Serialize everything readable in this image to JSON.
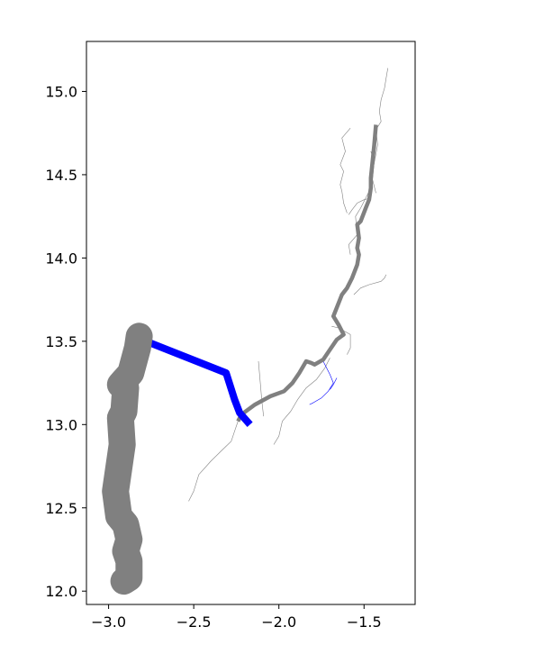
{
  "chart_data": {
    "type": "line",
    "title": "",
    "xlabel": "",
    "ylabel": "",
    "xlim": [
      -3.13,
      -1.2
    ],
    "ylim": [
      11.92,
      15.3
    ],
    "xticks": [
      -3.0,
      -2.5,
      -2.0,
      -1.5
    ],
    "yticks": [
      12.0,
      12.5,
      13.0,
      13.5,
      14.0,
      14.5,
      15.0
    ],
    "xtick_labels": [
      "−3.0",
      "−2.5",
      "−2.0",
      "−1.5"
    ],
    "ytick_labels": [
      "12.0",
      "12.5",
      "13.0",
      "13.5",
      "14.0",
      "14.5",
      "15.0"
    ],
    "grid": false,
    "colors": {
      "gray": "#808080",
      "blue": "#0000ff",
      "frame": "#000000"
    },
    "series": [
      {
        "color": "#808080",
        "width": 0.6,
        "x": [
          -1.36,
          -1.37,
          -1.38,
          -1.4,
          -1.41,
          -1.4,
          -1.43,
          -1.42,
          -1.44,
          -1.46,
          -1.47,
          -1.5,
          -1.52,
          -1.55,
          -1.54,
          -1.59,
          -1.58
        ],
        "y": [
          15.14,
          15.08,
          15.02,
          14.95,
          14.88,
          14.82,
          14.77,
          14.68,
          14.57,
          14.47,
          14.4,
          14.34,
          14.3,
          14.25,
          14.14,
          14.08,
          14.02
        ]
      },
      {
        "color": "#808080",
        "width": 0.6,
        "x": [
          -1.6,
          -1.62,
          -1.63,
          -1.64,
          -1.62,
          -1.64,
          -1.61,
          -1.63,
          -1.58
        ],
        "y": [
          14.27,
          14.33,
          14.4,
          14.44,
          14.52,
          14.56,
          14.64,
          14.72,
          14.78
        ]
      },
      {
        "color": "#808080",
        "width": 0.6,
        "x": [
          -1.46,
          -1.5,
          -1.54,
          -1.57,
          -1.59
        ],
        "y": [
          14.36,
          14.35,
          14.33,
          14.29,
          14.26
        ]
      },
      {
        "color": "#808080",
        "width": 0.6,
        "x": [
          -1.43,
          -1.45,
          -1.44,
          -1.46
        ],
        "y": [
          14.39,
          14.47,
          14.58,
          14.64
        ]
      },
      {
        "color": "#808080",
        "width": 0.6,
        "x": [
          -1.37,
          -1.38,
          -1.4,
          -1.47,
          -1.52,
          -1.56
        ],
        "y": [
          13.9,
          13.88,
          13.86,
          13.84,
          13.82,
          13.78
        ]
      },
      {
        "color": "#808080",
        "width": 0.6,
        "x": [
          -1.69,
          -1.65,
          -1.58,
          -1.58,
          -1.6
        ],
        "y": [
          13.59,
          13.58,
          13.54,
          13.46,
          13.42
        ]
      },
      {
        "color": "#808080",
        "width": 0.6,
        "x": [
          -1.7,
          -1.73,
          -1.78,
          -1.84,
          -1.89,
          -1.93,
          -1.98,
          -2.0,
          -2.03
        ],
        "y": [
          13.4,
          13.34,
          13.27,
          13.22,
          13.15,
          13.08,
          13.02,
          12.93,
          12.88
        ]
      },
      {
        "color": "#808080",
        "width": 0.6,
        "x": [
          -2.24,
          -2.26,
          -2.28,
          -2.34,
          -2.4,
          -2.47,
          -2.5,
          -2.53
        ],
        "y": [
          13.02,
          12.96,
          12.9,
          12.84,
          12.78,
          12.7,
          12.6,
          12.54
        ]
      },
      {
        "color": "#808080",
        "width": 0.6,
        "x": [
          -2.09,
          -2.1,
          -2.11,
          -2.12
        ],
        "y": [
          13.05,
          13.14,
          13.26,
          13.38
        ]
      },
      {
        "color": "#0000ff",
        "width": 0.6,
        "x": [
          -1.74,
          -1.7,
          -1.68,
          -1.71,
          -1.75,
          -1.8,
          -1.82
        ],
        "y": [
          13.38,
          13.3,
          13.25,
          13.2,
          13.16,
          13.13,
          13.12
        ]
      },
      {
        "color": "#0000ff",
        "width": 0.6,
        "x": [
          -1.66,
          -1.68,
          -1.7
        ],
        "y": [
          13.28,
          13.24,
          13.21
        ]
      },
      {
        "color": "#808080",
        "width": 4.5,
        "x": [
          -1.43,
          -1.44,
          -1.45,
          -1.46,
          -1.46,
          -1.47,
          -1.49,
          -1.52,
          -1.54,
          -1.53,
          -1.54,
          -1.53,
          -1.54,
          -1.57,
          -1.6,
          -1.63,
          -1.68,
          -1.65,
          -1.62,
          -1.66,
          -1.7,
          -1.74,
          -1.79,
          -1.81,
          -1.84,
          -1.88,
          -1.92,
          -1.97,
          -2.05,
          -2.14,
          -2.22,
          -2.24
        ],
        "y": [
          14.8,
          14.68,
          14.58,
          14.48,
          14.42,
          14.35,
          14.3,
          14.22,
          14.2,
          14.12,
          14.06,
          14.02,
          13.96,
          13.88,
          13.82,
          13.78,
          13.65,
          13.6,
          13.54,
          13.51,
          13.45,
          13.39,
          13.36,
          13.37,
          13.38,
          13.31,
          13.25,
          13.2,
          13.17,
          13.12,
          13.06,
          13.02
        ]
      },
      {
        "color": "#0000ff",
        "width": 8,
        "x": [
          -2.83,
          -2.31,
          -2.26,
          -2.23,
          -2.17
        ],
        "y": [
          13.52,
          13.31,
          13.15,
          13.07,
          13.0
        ]
      },
      {
        "color": "#808080",
        "width": 30,
        "x": [
          -2.82,
          -2.83,
          -2.87,
          -2.93,
          -2.9,
          -2.91,
          -2.93,
          -2.92,
          -2.96,
          -2.94,
          -2.9,
          -2.88,
          -2.9,
          -2.88,
          -2.88,
          -2.91
        ],
        "y": [
          13.53,
          13.46,
          13.31,
          13.24,
          13.22,
          13.08,
          13.04,
          12.88,
          12.6,
          12.45,
          12.4,
          12.31,
          12.24,
          12.18,
          12.08,
          12.06
        ]
      }
    ]
  }
}
